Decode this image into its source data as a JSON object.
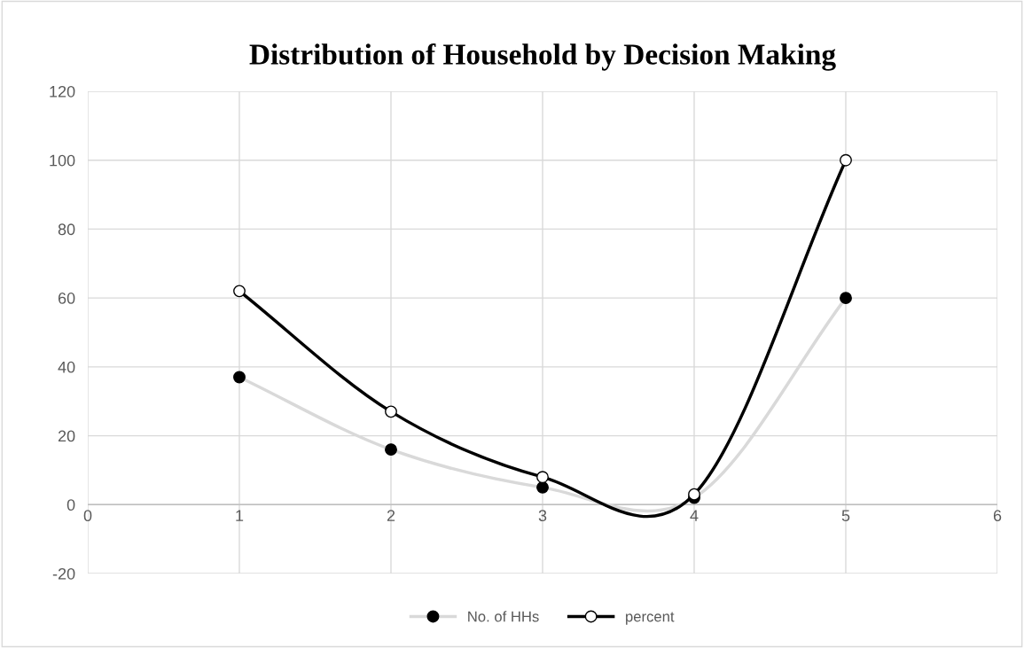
{
  "chart_data": {
    "type": "line",
    "title": "Distribution of Household by Decision Making",
    "x": [
      1,
      2,
      3,
      4,
      5
    ],
    "series": [
      {
        "name": "No. of HHs",
        "color": "#d9d9d9",
        "values": [
          37,
          16,
          5,
          2,
          60
        ]
      },
      {
        "name": "percent",
        "color": "#000000",
        "values": [
          62,
          27,
          8,
          3,
          100
        ]
      }
    ],
    "xlim": [
      0,
      6
    ],
    "xticks": [
      0,
      1,
      2,
      3,
      4,
      5,
      6
    ],
    "ylim": [
      -20,
      120
    ],
    "yticks": [
      -20,
      0,
      20,
      40,
      60,
      80,
      100,
      120
    ],
    "grid": true,
    "legend": "bottom",
    "marker": "circle",
    "line_style": "solid"
  }
}
